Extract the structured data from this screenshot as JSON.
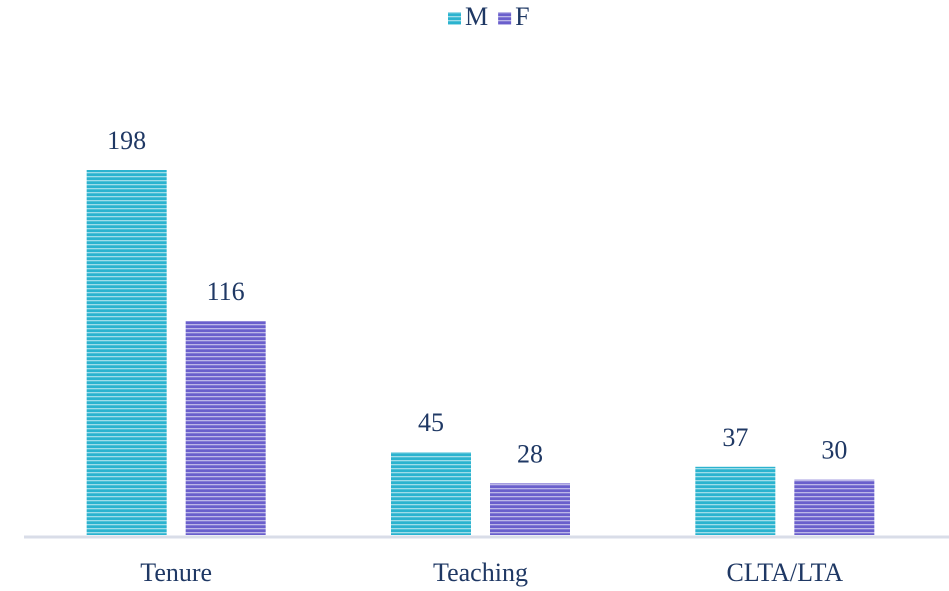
{
  "chart_data": {
    "type": "bar",
    "categories": [
      "Tenure",
      "Teaching",
      "CLTA/LTA"
    ],
    "series": [
      {
        "name": "M",
        "color": "#2bb3cf",
        "values": [
          198,
          45,
          37
        ]
      },
      {
        "name": "F",
        "color": "#6a5fcc",
        "values": [
          116,
          28,
          30
        ]
      }
    ],
    "legend": "top"
  }
}
